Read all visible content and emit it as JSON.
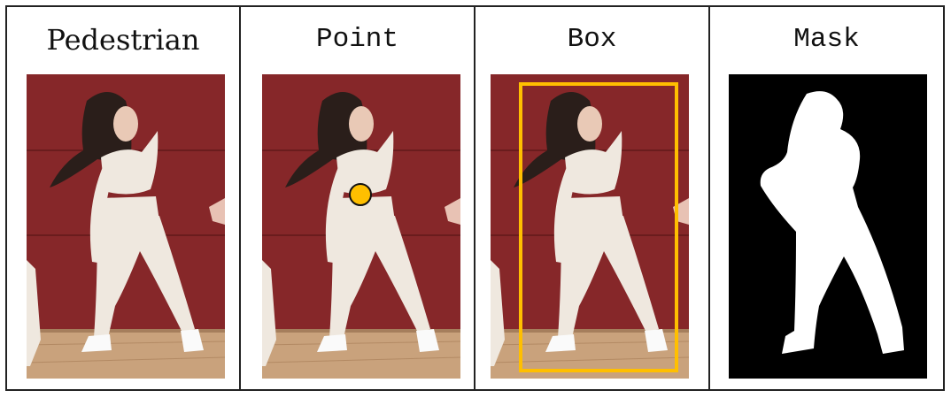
{
  "panels": {
    "pedestrian": {
      "title": "Pedestrian"
    },
    "point": {
      "title": "Point"
    },
    "box": {
      "title": "Box"
    },
    "mask": {
      "title": "Mask"
    }
  },
  "colors": {
    "wall": "#8b2a2b",
    "floor": "#c9a27c",
    "outfit": "#efe8df",
    "hair": "#2a1e1a",
    "prompt": "#ffbf00",
    "mask_background": "#000000",
    "mask_foreground": "#ffffff"
  }
}
